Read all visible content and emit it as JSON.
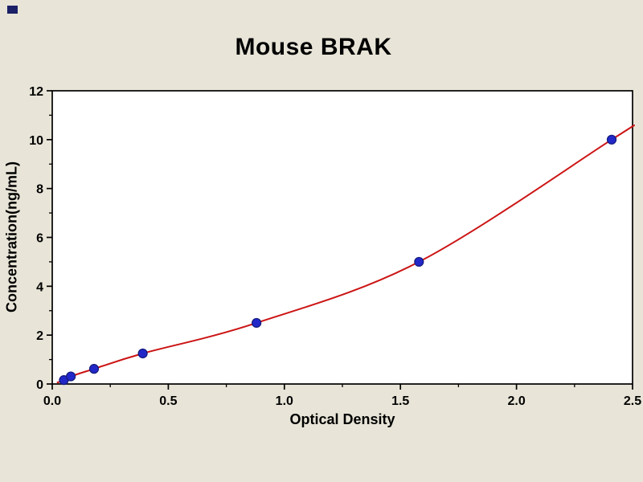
{
  "chart_data": {
    "type": "scatter",
    "title": "Mouse BRAK",
    "xlabel": "Optical Density",
    "ylabel": "Concentration(ng/mL)",
    "xlim": [
      0.0,
      2.5
    ],
    "ylim": [
      0,
      12
    ],
    "grid": false,
    "legend": false,
    "x_ticks": [
      0.0,
      0.5,
      1.0,
      1.5,
      2.0,
      2.5
    ],
    "x_tick_labels": [
      "0.0",
      "0.5",
      "1.0",
      "1.5",
      "2.0",
      "2.5"
    ],
    "x_minor_ticks": [
      0.25,
      0.75,
      1.25,
      1.75,
      2.25
    ],
    "y_ticks": [
      0,
      2,
      4,
      6,
      8,
      10,
      12
    ],
    "y_tick_labels": [
      "0",
      "2",
      "4",
      "6",
      "8",
      "10",
      "12"
    ],
    "y_minor_ticks": [
      1,
      3,
      5,
      7,
      9,
      11
    ],
    "series": [
      {
        "name": "standard-points",
        "kind": "scatter",
        "x": [
          0.05,
          0.08,
          0.18,
          0.39,
          0.88,
          1.58,
          2.41
        ],
        "y": [
          0.16,
          0.31,
          0.62,
          1.25,
          2.5,
          5.0,
          10.0
        ],
        "marker": "circle",
        "marker_color": "#2228c8",
        "marker_edge_color": "#131a7a"
      },
      {
        "name": "fit-curve",
        "kind": "line",
        "x": [
          0.02,
          0.05,
          0.08,
          0.18,
          0.39,
          0.88,
          1.58,
          2.41,
          2.5
        ],
        "y": [
          0.05,
          0.16,
          0.31,
          0.62,
          1.25,
          2.5,
          5.0,
          10.0,
          10.55
        ],
        "line_color": "#cc1414"
      }
    ],
    "colors": {
      "page_bg": "#e8e5d8",
      "plot_bg": "#ffffff",
      "frame": "#000000",
      "tick": "#000000",
      "text": "#000000",
      "curve": "#cc1414",
      "marker_fill": "#2228c8",
      "marker_edge": "#131a7a",
      "corner_mark": "#1a1f66"
    }
  }
}
